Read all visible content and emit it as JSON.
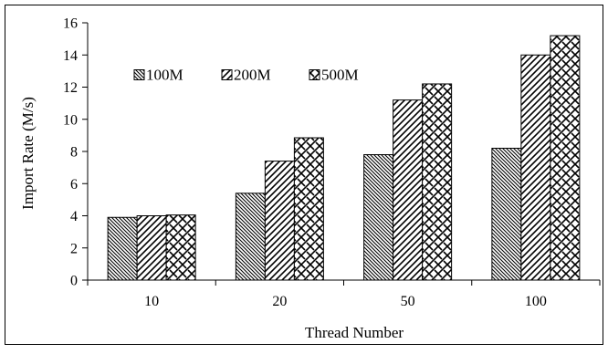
{
  "chart_data": {
    "type": "bar",
    "title": "",
    "xlabel": "Thread Number",
    "ylabel": "Import Rate (M/s)",
    "categories": [
      "10",
      "20",
      "50",
      "100"
    ],
    "ylim": [
      0,
      16
    ],
    "yticks": [
      "0",
      "2",
      "4",
      "6",
      "8",
      "10",
      "12",
      "14",
      "16"
    ],
    "grid": false,
    "legend_position": "top-left",
    "series": [
      {
        "name": "100M",
        "values": [
          3.9,
          5.4,
          7.8,
          8.2
        ],
        "pattern": "back-diagonal-dense"
      },
      {
        "name": "200M",
        "values": [
          4.0,
          7.4,
          11.2,
          14.0
        ],
        "pattern": "forward-diagonal"
      },
      {
        "name": "500M",
        "values": [
          4.05,
          8.85,
          12.2,
          15.2
        ],
        "pattern": "zigzag"
      }
    ]
  }
}
